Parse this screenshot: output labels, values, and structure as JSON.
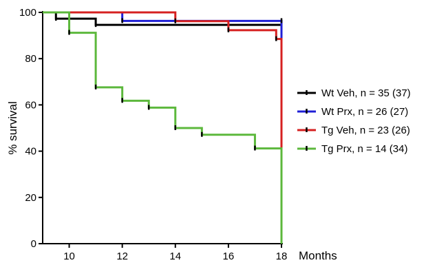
{
  "chart_data": {
    "type": "line",
    "title": "",
    "xlabel": "Months",
    "ylabel": "% survival",
    "xlim": [
      9,
      18
    ],
    "ylim": [
      0,
      100
    ],
    "x_ticks": [
      10,
      12,
      14,
      16,
      18
    ],
    "y_ticks": [
      0,
      20,
      40,
      60,
      80,
      100
    ],
    "grid": false,
    "legend_position": "right",
    "series": [
      {
        "name": "Wt Veh, n = 35 (37)",
        "color": "#000000",
        "steps": [
          [
            9,
            100
          ],
          [
            9.5,
            97.3
          ],
          [
            11,
            94.6
          ],
          [
            18,
            94.6
          ],
          [
            18,
            0
          ]
        ],
        "censor_marks": [
          [
            9.5,
            97.3
          ],
          [
            11,
            94.6
          ],
          [
            18,
            94.6
          ]
        ]
      },
      {
        "name": "Wt Prx, n = 26 (27)",
        "color": "#1f1fd6",
        "steps": [
          [
            9,
            100
          ],
          [
            12,
            96.3
          ],
          [
            18,
            96.3
          ],
          [
            18,
            0
          ]
        ],
        "censor_marks": [
          [
            12,
            96.3
          ],
          [
            18,
            96.3
          ]
        ]
      },
      {
        "name": "Tg Veh, n = 23 (26)",
        "color": "#d62020",
        "steps": [
          [
            9,
            100
          ],
          [
            14,
            96.2
          ],
          [
            16,
            92.3
          ],
          [
            17.8,
            88.5
          ],
          [
            18,
            88.5
          ],
          [
            18,
            0
          ]
        ],
        "censor_marks": [
          [
            14,
            96.2
          ],
          [
            16,
            92.3
          ],
          [
            17.8,
            88.5
          ]
        ]
      },
      {
        "name": "Tg Prx, n = 14 (34)",
        "color": "#5cb83c",
        "steps": [
          [
            9,
            100
          ],
          [
            10,
            91.2
          ],
          [
            11,
            67.6
          ],
          [
            12,
            61.8
          ],
          [
            13,
            58.8
          ],
          [
            14,
            50
          ],
          [
            15,
            47.1
          ],
          [
            17,
            41.2
          ],
          [
            18,
            41.2
          ],
          [
            18,
            0
          ]
        ],
        "censor_marks": [
          [
            10,
            91.2
          ],
          [
            11,
            67.6
          ],
          [
            12,
            61.8
          ],
          [
            13,
            58.8
          ],
          [
            14,
            50
          ],
          [
            15,
            47.1
          ],
          [
            17,
            41.2
          ]
        ]
      }
    ]
  }
}
